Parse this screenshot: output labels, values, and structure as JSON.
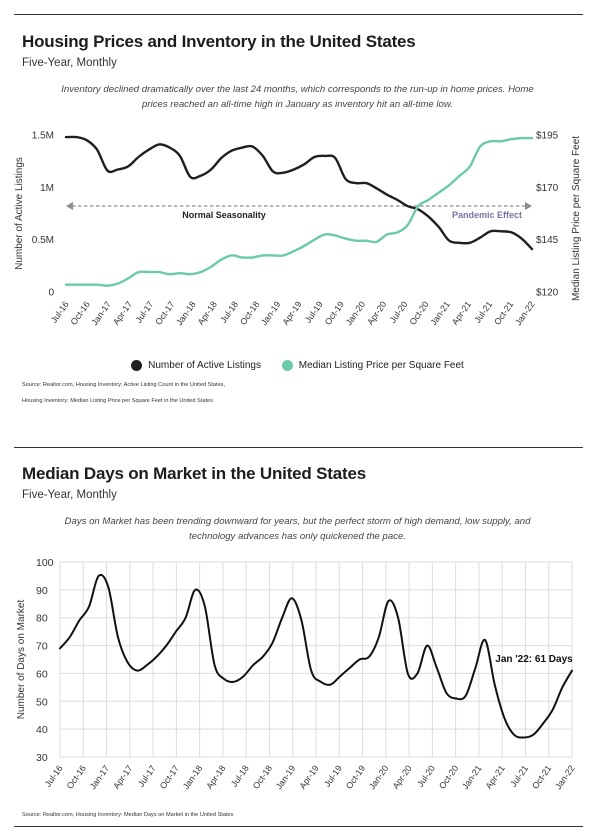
{
  "chart_data": [
    {
      "type": "line",
      "title": "Housing Prices and Inventory in the United States",
      "subtitle": "Five-Year, Monthly",
      "description": "Inventory declined dramatically over the last 24 months, which corresponds to the run-up in home prices. Home prices reached an all-time high in January as inventory hit an all-time low.",
      "ylabel": "Number of Active Listings",
      "y2label": "Median Listing Price per Square Feet",
      "ylim": [
        0,
        1500000
      ],
      "y2lim": [
        120,
        195
      ],
      "yticks": [
        {
          "label": "1.5M",
          "value": 1500000
        },
        {
          "label": "1M",
          "value": 1000000
        },
        {
          "label": "0.5M",
          "value": 500000
        },
        {
          "label": "0",
          "value": 0
        }
      ],
      "y2ticks": [
        {
          "label": "$195",
          "value": 195
        },
        {
          "label": "$170",
          "value": 170
        },
        {
          "label": "$145",
          "value": 145
        },
        {
          "label": "$120",
          "value": 120
        }
      ],
      "xticks": [
        "Jul-16",
        "Oct-16",
        "Jan-17",
        "Apr-17",
        "Jul-17",
        "Oct-17",
        "Jan-18",
        "Apr-18",
        "Jul-18",
        "Oct-18",
        "Jan-19",
        "Apr-19",
        "Jul-19",
        "Oct-19",
        "Jan-20",
        "Apr-20",
        "Jul-20",
        "Oct-20",
        "Jan-21",
        "Apr-21",
        "Jul-21",
        "Oct-21",
        "Jan-22"
      ],
      "annotations": [
        {
          "text": "Normal Seasonality",
          "color": "#222222"
        },
        {
          "text": "Pandemic Effect",
          "color": "#7a72a8"
        }
      ],
      "legend_position": "bottom",
      "grid": false,
      "series": [
        {
          "name": "Number of Active Listings",
          "axis": "left",
          "color": "#1f1f1f",
          "values": [
            1480000,
            1480000,
            1450000,
            1360000,
            1160000,
            1170000,
            1200000,
            1290000,
            1360000,
            1410000,
            1380000,
            1300000,
            1100000,
            1110000,
            1170000,
            1280000,
            1350000,
            1380000,
            1390000,
            1300000,
            1150000,
            1140000,
            1170000,
            1220000,
            1290000,
            1300000,
            1280000,
            1080000,
            1040000,
            1040000,
            990000,
            930000,
            880000,
            820000,
            790000,
            720000,
            620000,
            490000,
            470000,
            470000,
            520000,
            580000,
            580000,
            570000,
            510000,
            410000
          ]
        },
        {
          "name": "Median Listing Price per Square Feet",
          "axis": "right",
          "color": "#6ccaa9",
          "values": [
            123.5,
            123.5,
            123.5,
            123.5,
            123.0,
            124.0,
            126.5,
            129.5,
            129.5,
            129.5,
            128.5,
            129.0,
            128.5,
            129.5,
            132.0,
            135.5,
            137.5,
            136.5,
            136.5,
            137.5,
            137.5,
            137.5,
            139.5,
            142.0,
            145.0,
            147.5,
            147.0,
            145.5,
            144.5,
            144.5,
            144.0,
            147.5,
            148.5,
            152.0,
            161.0,
            164.0,
            167.5,
            171.0,
            175.5,
            180.0,
            189.5,
            192.0,
            192.0,
            193.0,
            193.5,
            193.5
          ]
        }
      ]
    },
    {
      "type": "line",
      "title": "Median Days on Market in the United States",
      "subtitle": "Five-Year, Monthly",
      "description": "Days on Market has been trending downward for years, but the perfect storm of high demand, low supply, and technology advances has only quickened the pace.",
      "ylabel": "Number of Days on Market",
      "ylim": [
        30,
        100
      ],
      "yticks": [
        100,
        90,
        80,
        70,
        60,
        50,
        40,
        30
      ],
      "xticks": [
        "Jul-16",
        "Oct-16",
        "Jan-17",
        "Apr-17",
        "Jul-17",
        "Oct-17",
        "Jan-18",
        "Apr-18",
        "Jul-18",
        "Oct-18",
        "Jan-19",
        "Apr-19",
        "Jul-19",
        "Oct-19",
        "Jan-20",
        "Apr-20",
        "Jul-20",
        "Oct-20",
        "Jan-21",
        "Apr-21",
        "Jul-21",
        "Oct-21",
        "Jan-22"
      ],
      "grid": true,
      "annotation": "Jan '22: 61 Days",
      "series": [
        {
          "name": "",
          "color": "#111111",
          "values": [
            69,
            73,
            79,
            84,
            95,
            91,
            73,
            64,
            61,
            63,
            66,
            70,
            75,
            80,
            90,
            84,
            63,
            58,
            57,
            59,
            63,
            66,
            71,
            80,
            87,
            79,
            61,
            57,
            56,
            59,
            62,
            65,
            66,
            73,
            86,
            80,
            60,
            60,
            70,
            62,
            53,
            51,
            52,
            62,
            72,
            56,
            44,
            38,
            37,
            38,
            42,
            47,
            55,
            61
          ]
        }
      ]
    }
  ],
  "sources": {
    "chart1_line1": "Source: Realtor.com, Housing Inventory: Active Listing Count in the United States,",
    "chart1_line2": "Housing Inventory: Median Listing Price per Square Feet in the United States",
    "chart2": "Source: Realtor.com, Housing Inventory: Median Days on Market in the United States"
  }
}
